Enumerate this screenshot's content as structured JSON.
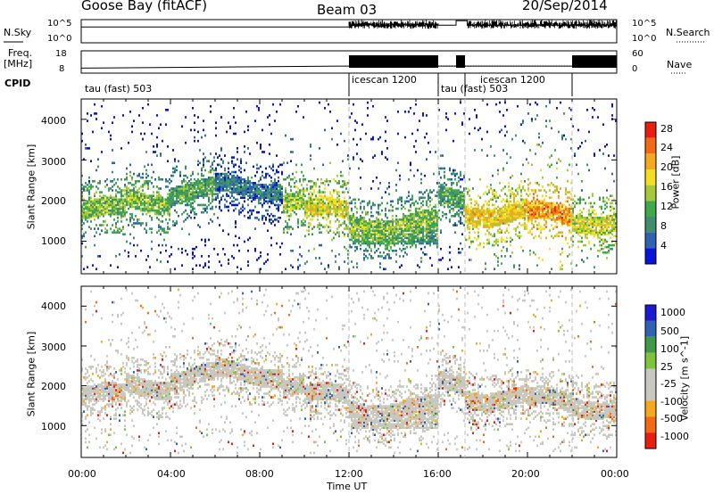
{
  "header": {
    "site": "Goose Bay (fitACF)",
    "beam": "Beam 03",
    "date": "20/Sep/2014"
  },
  "noise_panel": {
    "left_label": "N.Sky",
    "right_label": "N.Search",
    "ticks": [
      "10^5",
      "10^0"
    ]
  },
  "freq_panel": {
    "left_label_line1": "Freq.",
    "left_label_line2": "[MHz]",
    "right_label": "Nave",
    "left_ticks": [
      "18",
      "8"
    ],
    "right_ticks": [
      "60",
      "0"
    ]
  },
  "cpid": {
    "label": "CPID",
    "segments": [
      {
        "text": "tau (fast) 503",
        "start_hour": 0
      },
      {
        "text": "icescan 1200",
        "start_hour": 12
      },
      {
        "text": "tau (fast) 503",
        "start_hour": 16
      },
      {
        "text": "icescan 1200",
        "start_hour": 17.2
      },
      {
        "text": "",
        "start_hour": 22
      }
    ]
  },
  "power_panel": {
    "ylabel": "Slant Range [km]",
    "yticks": [
      "1000",
      "2000",
      "3000",
      "4000"
    ],
    "colorbar_label": "Power [dB]",
    "colorbar_ticks": [
      "4",
      "8",
      "12",
      "16",
      "20",
      "24",
      "28"
    ],
    "colors": [
      "#0a14d8",
      "#2f62b0",
      "#3f8f6e",
      "#3fa84a",
      "#a6c83a",
      "#f2e020",
      "#f4a81e",
      "#f26a14",
      "#e81e10"
    ]
  },
  "velocity_panel": {
    "ylabel": "Slant Range [km]",
    "yticks": [
      "1000",
      "2000",
      "3000",
      "4000"
    ],
    "colorbar_label": "Velocity [m s^-1]",
    "colorbar_ticks": [
      "-1000",
      "-500",
      "-100",
      "-25",
      "25",
      "100",
      "500",
      "1000"
    ],
    "colors": [
      "#e81e10",
      "#f26a14",
      "#f4a81e",
      "#c8c8c0",
      "#c8c8c0",
      "#7ec43a",
      "#3f9a48",
      "#2f62b0",
      "#1a1ad0"
    ]
  },
  "x_axis": {
    "label": "Time UT",
    "ticks": [
      "00:00",
      "04:00",
      "08:00",
      "12:00",
      "16:00",
      "20:00",
      "00:00"
    ]
  },
  "chart_data": [
    {
      "type": "line",
      "title": "Goose Bay (fitACF)",
      "xlabel": "",
      "ylabel": "N.Sky",
      "x_range_hours": [
        0,
        24
      ],
      "yscale": "log",
      "ylim": [
        1,
        100000
      ],
      "series": [
        {
          "x": [
            0,
            12,
            12.1,
            16,
            16.8,
            17.3,
            24
          ],
          "values": [
            3000,
            3000,
            15000,
            8000,
            90000,
            8000,
            12000
          ]
        }
      ]
    },
    {
      "type": "line",
      "xlabel": "",
      "ylabel": "Freq. [MHz]",
      "x_range_hours": [
        0,
        24
      ],
      "ylim": [
        8,
        18
      ],
      "series": [
        {
          "x": [
            0,
            6,
            12,
            16,
            22,
            24
          ],
          "values": [
            10,
            10.5,
            11,
            11,
            11,
            11
          ]
        },
        {
          "x": [
            12,
            16,
            16.8,
            17.2,
            22,
            24
          ],
          "values": [
            15,
            15,
            15,
            15,
            15,
            15
          ]
        }
      ]
    },
    {
      "type": "heatmap",
      "quantity": "Power",
      "xlabel": "",
      "ylabel": "Slant Range [km]",
      "colorbar": "Power [dB]",
      "x_range_hours": [
        0,
        24
      ],
      "ylim": [
        200,
        4500
      ],
      "zlim": [
        0,
        30
      ],
      "band_start_hour": [
        0,
        2,
        4,
        6,
        9,
        10,
        12,
        16,
        17.2,
        20,
        22
      ],
      "band_center_km": [
        1700,
        2000,
        2200,
        2300,
        2000,
        1700,
        1400,
        2000,
        1700,
        1600,
        1500
      ],
      "band_value_db": [
        14,
        14,
        12,
        8,
        16,
        18,
        14,
        12,
        20,
        24,
        18
      ]
    },
    {
      "type": "heatmap",
      "quantity": "Velocity",
      "xlabel": "Time UT",
      "ylabel": "Slant Range [km]",
      "colorbar": "Velocity [m s^-1]",
      "x_range_hours": [
        0,
        24
      ],
      "ylim": [
        200,
        4500
      ],
      "zlim": [
        -1000,
        1000
      ],
      "dominant_velocity": "ground scatter (-25 to 25 m s^-1)"
    }
  ]
}
